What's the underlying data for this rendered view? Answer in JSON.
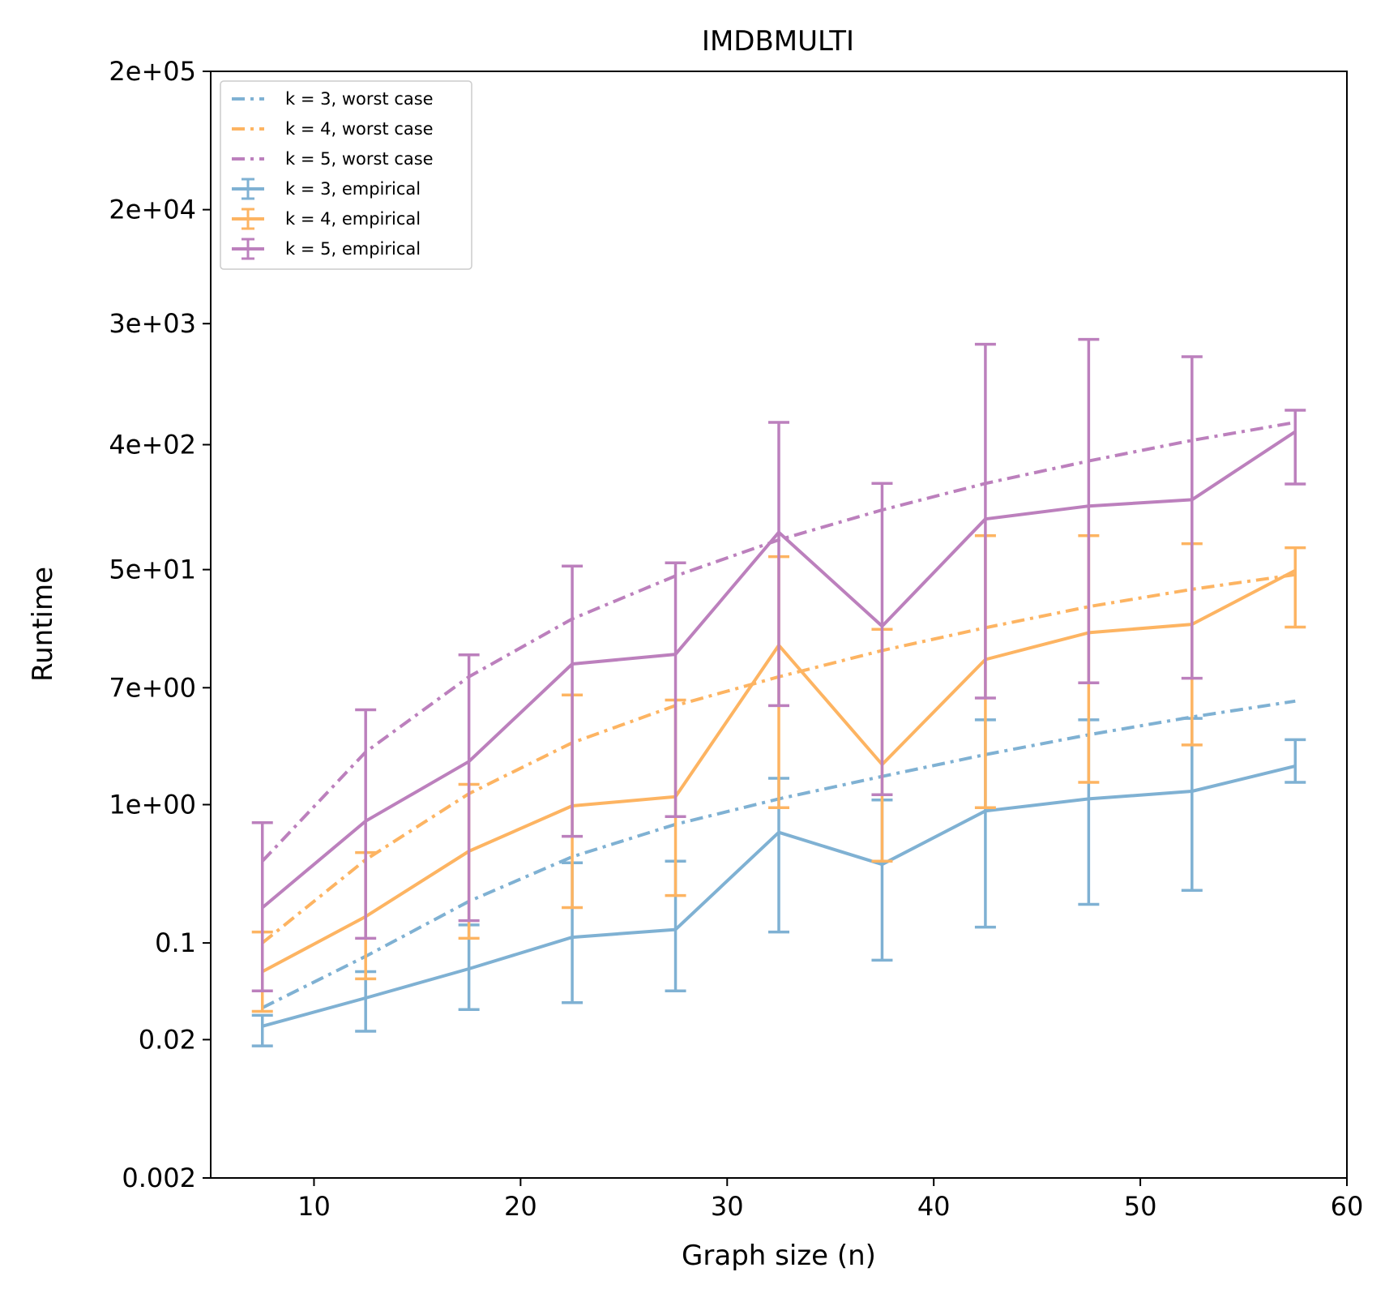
{
  "chart_data": {
    "type": "line",
    "title": "IMDBMULTI",
    "xlabel": "Graph size (n)",
    "ylabel": "Runtime",
    "xlim": [
      5,
      60
    ],
    "ylim": [
      0.002,
      200000
    ],
    "yscale": "log",
    "grid": false,
    "legend_position": "top-left",
    "x_ticks": [
      10,
      20,
      30,
      40,
      50,
      60
    ],
    "y_ticks": [
      {
        "value": 0.002,
        "label": "0.002"
      },
      {
        "value": 0.02,
        "label": "0.02"
      },
      {
        "value": 0.1,
        "label": "0.1"
      },
      {
        "value": 1,
        "label": "1e+00"
      },
      {
        "value": 7,
        "label": "7e+00"
      },
      {
        "value": 50,
        "label": "5e+01"
      },
      {
        "value": 400,
        "label": "4e+02"
      },
      {
        "value": 3000,
        "label": "3e+03"
      },
      {
        "value": 20000,
        "label": "2e+04"
      },
      {
        "value": 200000,
        "label": "2e+05"
      }
    ],
    "x": [
      7.5,
      12.5,
      17.5,
      22.5,
      27.5,
      32.5,
      37.5,
      42.5,
      47.5,
      52.5,
      57.5
    ],
    "worst_case_series": [
      {
        "name": "k = 3, worst case",
        "color": "#7fb1d3",
        "values": [
          0.034,
          0.08,
          0.2,
          0.42,
          0.72,
          1.1,
          1.6,
          2.3,
          3.2,
          4.3,
          5.6
        ]
      },
      {
        "name": "k = 4, worst case",
        "color": "#fdb462",
        "values": [
          0.1,
          0.4,
          1.2,
          2.8,
          5.2,
          8.4,
          13,
          19,
          27,
          36,
          46
        ]
      },
      {
        "name": "k = 5, worst case",
        "color": "#bc80bd",
        "values": [
          0.39,
          2.4,
          8.4,
          22,
          45,
          82,
          135,
          210,
          305,
          430,
          580
        ]
      }
    ],
    "empirical_series": [
      {
        "name": "k = 3, empirical",
        "color": "#7fb1d3",
        "values": [
          0.025,
          0.04,
          0.065,
          0.11,
          0.125,
          0.63,
          0.37,
          0.9,
          1.1,
          1.25,
          1.9
        ],
        "lower": [
          0.018,
          0.023,
          0.033,
          0.037,
          0.045,
          0.12,
          0.075,
          0.13,
          0.19,
          0.24,
          1.45
        ],
        "upper": [
          0.03,
          0.062,
          0.135,
          0.38,
          0.39,
          1.55,
          1.08,
          4.1,
          4.1,
          4.2,
          2.95
        ]
      },
      {
        "name": "k = 4, empirical",
        "color": "#fdb462",
        "values": [
          0.062,
          0.155,
          0.46,
          0.98,
          1.14,
          14.2,
          1.95,
          11.2,
          17.5,
          20.1,
          49.3
        ],
        "lower": [
          0.032,
          0.055,
          0.108,
          0.18,
          0.22,
          0.95,
          0.39,
          0.95,
          1.45,
          2.7,
          19.2
        ],
        "upper": [
          0.12,
          0.45,
          1.4,
          6.2,
          5.7,
          62,
          18.5,
          88,
          88,
          77,
          72
        ]
      },
      {
        "name": "k = 5, empirical",
        "color": "#bc80bd",
        "values": [
          0.18,
          0.76,
          2.05,
          10.4,
          12.2,
          93,
          19.5,
          116,
          144,
          160,
          497
        ],
        "lower": [
          0.045,
          0.108,
          0.145,
          0.59,
          0.82,
          5.2,
          1.18,
          5.9,
          7.6,
          8.2,
          208
        ],
        "upper": [
          0.74,
          4.85,
          12.1,
          53,
          56,
          580,
          210,
          2130,
          2310,
          1730,
          710
        ]
      }
    ]
  }
}
